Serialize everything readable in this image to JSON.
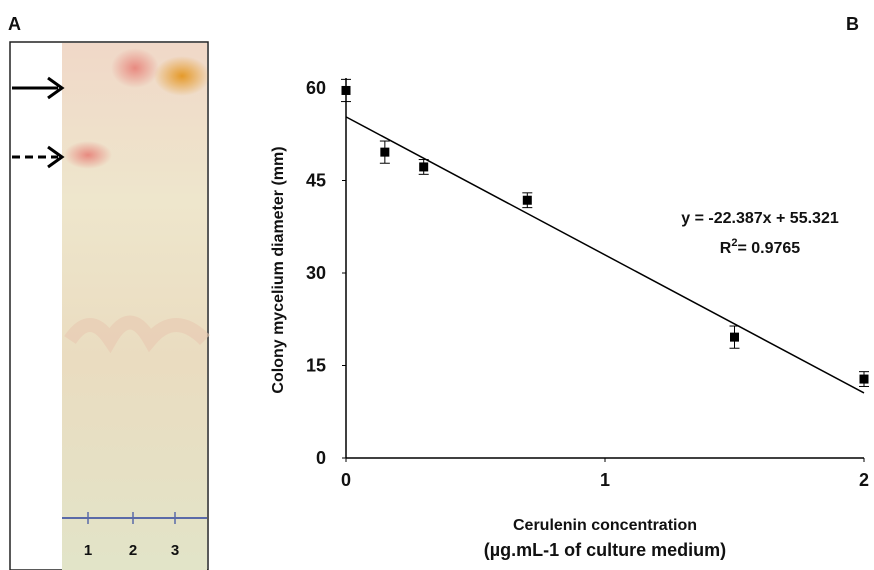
{
  "panel_a": {
    "label": "A",
    "lanes": [
      "1",
      "2",
      "3"
    ]
  },
  "chart_data": {
    "type": "scatter",
    "panel_label": "B",
    "x_label": [
      "Cerulenin concentration",
      "(µg.mL-1 of culture medium)"
    ],
    "y_label": "Colony mycelium diameter (mm)",
    "x": [
      0,
      0.15,
      0.3,
      0.7,
      1.5,
      2
    ],
    "values": [
      59.6,
      49.6,
      47.2,
      41.8,
      19.6,
      12.8
    ],
    "errors": [
      1.8,
      1.8,
      1.2,
      1.2,
      1.8,
      1.2
    ],
    "color": "#000000",
    "xlim": [
      0,
      2
    ],
    "xticks": [
      0,
      1,
      2
    ],
    "ylim": [
      0,
      60
    ],
    "yticks": [
      0,
      15,
      30,
      45,
      60
    ],
    "trendline": {
      "slope": -22.387,
      "intercept": 55.321
    },
    "annotation": {
      "equation": "y = -22.387x + 55.321",
      "r2": [
        "R",
        "2",
        "= 0.9765"
      ]
    }
  }
}
